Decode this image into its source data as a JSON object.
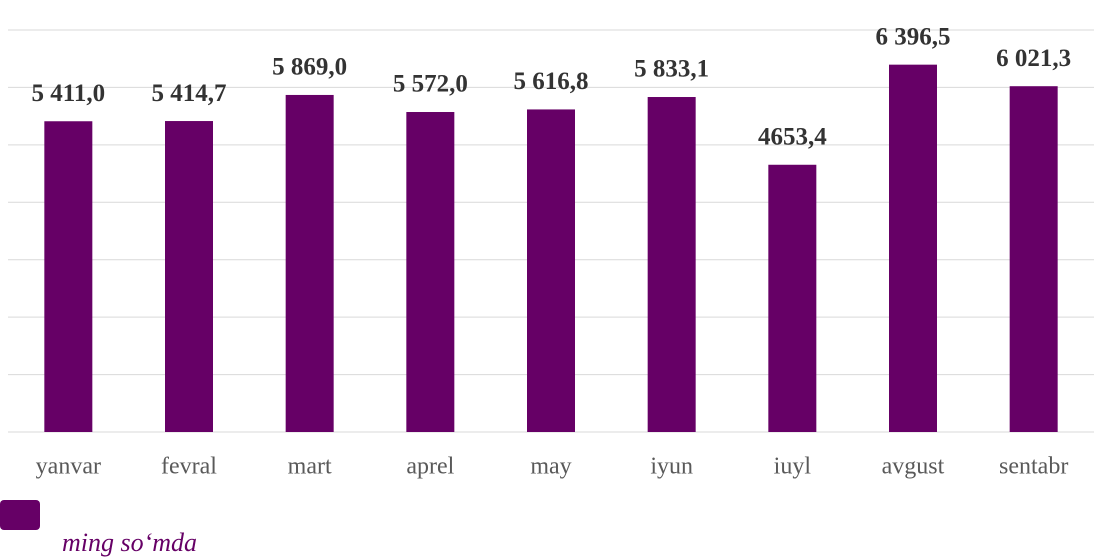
{
  "chart_data": {
    "type": "bar",
    "categories": [
      "yanvar",
      "fevral",
      "mart",
      "aprel",
      "may",
      "iyun",
      "iuyl",
      "avgust",
      "sentabr"
    ],
    "series": [
      {
        "name": "ming so‘mda",
        "color": "#660066",
        "values": [
          5411.0,
          5414.7,
          5869.0,
          5572.0,
          5616.8,
          5833.1,
          4653.4,
          6396.5,
          6021.3
        ],
        "value_labels": [
          "5 411,0",
          "5 414,7",
          "5 869,0",
          "5 572,0",
          "5 616,8",
          "5 833,1",
          "4653,4",
          "6 396,5",
          "6 021,3"
        ]
      }
    ],
    "ylim": [
      0,
      7000
    ],
    "yticks": [
      0,
      1000,
      2000,
      3000,
      4000,
      5000,
      6000,
      7000
    ],
    "grid": true
  }
}
